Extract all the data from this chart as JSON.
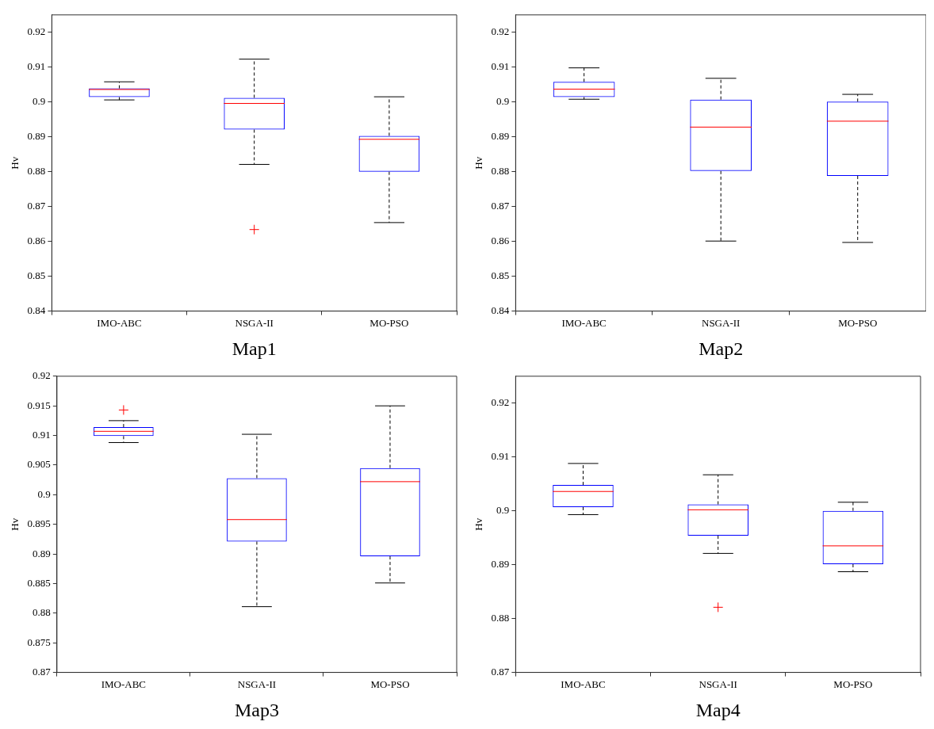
{
  "chart_data": [
    {
      "type": "box",
      "xlabel": "Map1",
      "ylabel": "Hv",
      "categories": [
        "IMO-ABC",
        "NSGA-II",
        "MO-PSO"
      ],
      "ylim": [
        0.84,
        0.925
      ],
      "yticks": [
        0.84,
        0.85,
        0.86,
        0.87,
        0.88,
        0.89,
        0.9,
        0.91,
        0.92
      ],
      "series": [
        {
          "color": "#0000ff",
          "boxes": [
            {
              "low": 0.9006,
              "q1": 0.9014,
              "median": 0.9036,
              "q3": 0.9039,
              "high": 0.9058
            },
            {
              "low": 0.8821,
              "q1": 0.8921,
              "median": 0.8996,
              "q3": 0.9012,
              "high": 0.9123,
              "outliers": [
                0.8634
              ]
            },
            {
              "low": 0.8654,
              "q1": 0.88,
              "median": 0.8893,
              "q3": 0.8903,
              "high": 0.9015
            }
          ]
        }
      ]
    },
    {
      "type": "box",
      "xlabel": "Map2",
      "ylabel": "Hv",
      "categories": [
        "IMO-ABC",
        "NSGA-II",
        "MO-PSO"
      ],
      "ylim": [
        0.84,
        0.925
      ],
      "yticks": [
        0.84,
        0.85,
        0.86,
        0.87,
        0.88,
        0.89,
        0.9,
        0.91,
        0.92
      ],
      "series": [
        {
          "color": "#0000ff",
          "boxes": [
            {
              "low": 0.9008,
              "q1": 0.9014,
              "median": 0.9037,
              "q3": 0.9058,
              "high": 0.9098
            },
            {
              "low": 0.8601,
              "q1": 0.8802,
              "median": 0.8928,
              "q3": 0.9007,
              "high": 0.9068
            },
            {
              "low": 0.8597,
              "q1": 0.8788,
              "median": 0.8945,
              "q3": 0.9001,
              "high": 0.9022
            }
          ]
        }
      ]
    },
    {
      "type": "box",
      "xlabel": "Map3",
      "ylabel": "Hv",
      "categories": [
        "IMO-ABC",
        "NSGA-II",
        "MO-PSO"
      ],
      "ylim": [
        0.87,
        0.92
      ],
      "yticks": [
        0.87,
        0.875,
        0.88,
        0.885,
        0.89,
        0.895,
        0.9,
        0.905,
        0.91,
        0.915,
        0.92
      ],
      "series": [
        {
          "color": "#0000ff",
          "boxes": [
            {
              "low": 0.9088,
              "q1": 0.9099,
              "median": 0.9107,
              "q3": 0.9114,
              "high": 0.9125,
              "outliers": [
                0.9143
              ]
            },
            {
              "low": 0.8811,
              "q1": 0.8921,
              "median": 0.8958,
              "q3": 0.9028,
              "high": 0.9102
            },
            {
              "low": 0.8851,
              "q1": 0.8896,
              "median": 0.9022,
              "q3": 0.9045,
              "high": 0.915
            }
          ]
        }
      ]
    },
    {
      "type": "box",
      "xlabel": "Map4",
      "ylabel": "Hv",
      "categories": [
        "IMO-ABC",
        "NSGA-II",
        "MO-PSO"
      ],
      "ylim": [
        0.87,
        0.925
      ],
      "yticks": [
        0.87,
        0.88,
        0.89,
        0.9,
        0.91,
        0.92
      ],
      "series": [
        {
          "color": "#0000ff",
          "boxes": [
            {
              "low": 0.8993,
              "q1": 0.9007,
              "median": 0.9036,
              "q3": 0.9048,
              "high": 0.9088
            },
            {
              "low": 0.8921,
              "q1": 0.8954,
              "median": 0.9002,
              "q3": 0.9012,
              "high": 0.9067,
              "outliers": [
                0.8821
              ]
            },
            {
              "low": 0.8887,
              "q1": 0.8901,
              "median": 0.8935,
              "q3": 0.9,
              "high": 0.9016
            }
          ]
        }
      ]
    }
  ]
}
